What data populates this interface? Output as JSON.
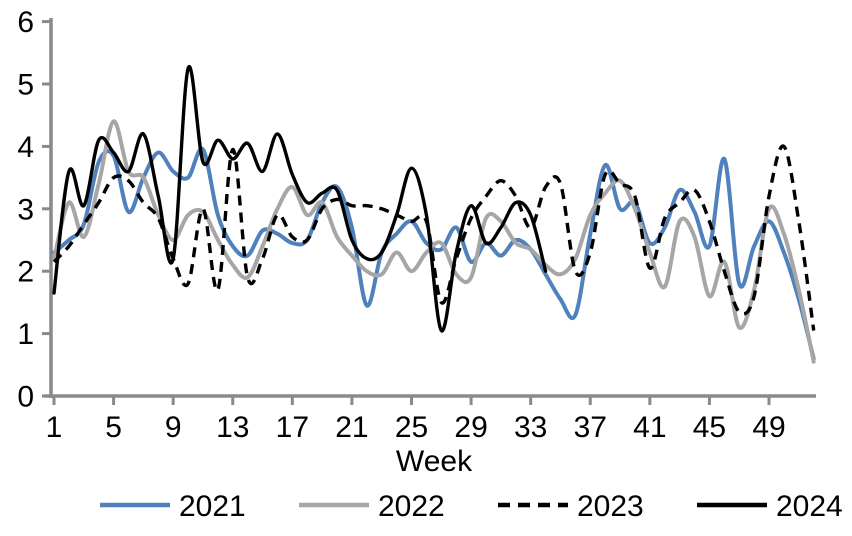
{
  "chart_data": {
    "type": "line",
    "title": "",
    "xlabel": "Week",
    "ylabel": "",
    "xlim": [
      1,
      52
    ],
    "ylim": [
      0,
      6
    ],
    "x_ticks": [
      1,
      5,
      9,
      13,
      17,
      21,
      25,
      29,
      33,
      37,
      41,
      45,
      49
    ],
    "y_ticks": [
      0,
      1,
      2,
      3,
      4,
      5,
      6
    ],
    "grid": false,
    "legend_position": "bottom",
    "axis_color": "#8a8a8a",
    "tick_label_color": "#000000",
    "weeks": [
      1,
      2,
      3,
      4,
      5,
      6,
      7,
      8,
      9,
      10,
      11,
      12,
      13,
      14,
      15,
      16,
      17,
      18,
      19,
      20,
      21,
      22,
      23,
      24,
      25,
      26,
      27,
      28,
      29,
      30,
      31,
      32,
      33,
      34,
      35,
      36,
      37,
      38,
      39,
      40,
      41,
      42,
      43,
      44,
      45,
      46,
      47,
      48,
      49,
      50,
      51,
      52
    ],
    "series": [
      {
        "name": "2021",
        "color": "#4f81bd",
        "style": "solid",
        "values": [
          2.3,
          2.5,
          2.75,
          3.75,
          3.85,
          2.95,
          3.5,
          3.9,
          3.6,
          3.5,
          3.95,
          2.9,
          2.4,
          2.25,
          2.65,
          2.6,
          2.45,
          2.5,
          3.1,
          3.35,
          2.7,
          1.45,
          2.3,
          2.6,
          2.8,
          2.45,
          2.35,
          2.7,
          2.15,
          2.45,
          2.25,
          2.5,
          2.35,
          1.95,
          1.55,
          1.3,
          2.6,
          3.7,
          3.0,
          3.1,
          2.45,
          2.7,
          3.3,
          2.95,
          2.4,
          3.8,
          1.8,
          2.4,
          2.8,
          2.3,
          1.55,
          0.6
        ]
      },
      {
        "name": "2022",
        "color": "#a6a6a6",
        "style": "solid",
        "values": [
          2.2,
          3.1,
          2.55,
          3.4,
          4.4,
          3.6,
          3.5,
          2.9,
          2.5,
          2.9,
          2.95,
          2.5,
          2.1,
          1.9,
          2.4,
          3.0,
          3.35,
          2.9,
          3.1,
          2.55,
          2.25,
          2.0,
          1.95,
          2.3,
          2.0,
          2.3,
          2.45,
          1.95,
          1.9,
          2.85,
          2.8,
          2.45,
          2.35,
          2.1,
          1.95,
          2.2,
          2.9,
          3.25,
          3.45,
          3.0,
          2.3,
          1.75,
          2.8,
          2.55,
          1.6,
          2.15,
          1.1,
          1.7,
          3.0,
          2.6,
          1.7,
          0.55
        ]
      },
      {
        "name": "2023",
        "color": "#000000",
        "style": "dashed",
        "values": [
          2.15,
          2.4,
          2.75,
          3.1,
          3.5,
          3.45,
          3.1,
          2.85,
          2.2,
          1.8,
          3.0,
          1.7,
          3.95,
          1.9,
          2.2,
          2.9,
          2.55,
          2.5,
          3.0,
          3.15,
          3.05,
          3.05,
          3.0,
          2.9,
          2.8,
          2.8,
          1.5,
          2.2,
          2.85,
          3.2,
          3.45,
          3.2,
          2.7,
          3.35,
          3.4,
          2.0,
          2.3,
          3.55,
          3.4,
          3.2,
          2.05,
          2.85,
          3.1,
          3.3,
          2.8,
          2.0,
          1.35,
          1.6,
          3.2,
          4.0,
          2.8,
          1.05
        ]
      },
      {
        "name": "2024",
        "color": "#000000",
        "style": "solid",
        "values": [
          1.65,
          3.6,
          3.05,
          4.1,
          3.9,
          3.6,
          4.2,
          3.2,
          2.2,
          5.25,
          3.75,
          4.1,
          3.8,
          4.05,
          3.6,
          4.2,
          3.55,
          3.1,
          3.25,
          3.3,
          2.5,
          2.2,
          2.3,
          2.9,
          3.65,
          2.9,
          1.05,
          2.3,
          3.05,
          2.45,
          2.7,
          3.1,
          2.9,
          2.0
        ]
      }
    ]
  }
}
